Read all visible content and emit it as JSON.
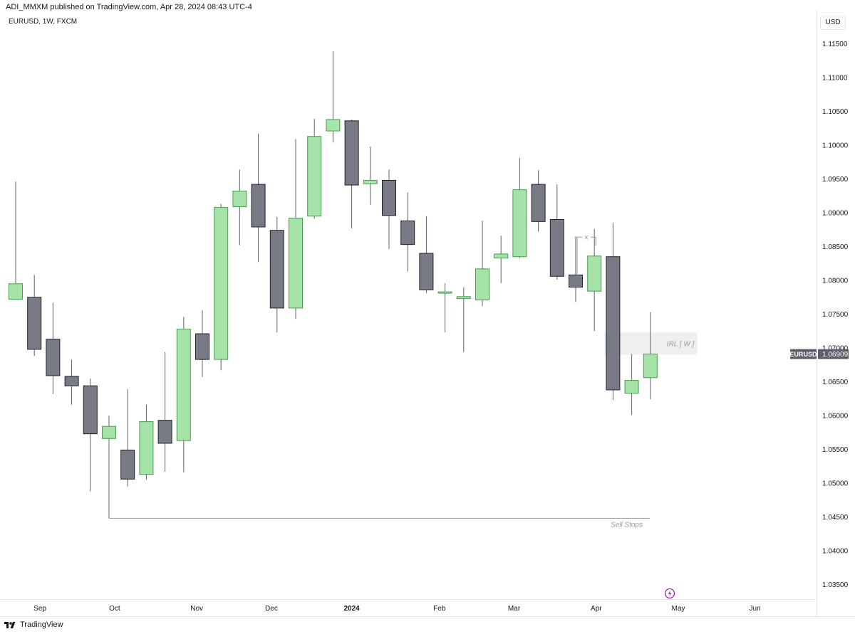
{
  "header": {
    "published_line": "ADI_MMXM published on TradingView.com, Apr 28, 2024 08:43 UTC-4",
    "symbol_line": "EURUSD, 1W, FXCM",
    "currency_button": "USD"
  },
  "footer": {
    "brand": "TradingView",
    "logo_icon": "tradingview-logo-icon"
  },
  "chart_data": {
    "type": "candlestick",
    "symbol": "EURUSD",
    "timeframe": "1W",
    "source": "FXCM",
    "colors": {
      "up_body": "#a5e3a8",
      "up_border": "#4a9d4f",
      "down_body": "#787b86",
      "down_border": "#1e222d",
      "wick": "#5d606b"
    },
    "ylim": [
      1.03,
      1.12
    ],
    "y_ticks": [
      "1.11500",
      "1.11000",
      "1.10500",
      "1.10000",
      "1.09500",
      "1.09000",
      "1.08500",
      "1.08000",
      "1.07500",
      "1.07000",
      "1.06500",
      "1.06000",
      "1.05500",
      "1.05000",
      "1.04500",
      "1.04000",
      "1.03500"
    ],
    "x_ticks": [
      {
        "label": "Sep",
        "week": 1.3
      },
      {
        "label": "Oct",
        "week": 5.3
      },
      {
        "label": "Nov",
        "week": 9.7
      },
      {
        "label": "Dec",
        "week": 13.7
      },
      {
        "label": "2024",
        "week": 18.0
      },
      {
        "label": "Feb",
        "week": 22.7
      },
      {
        "label": "Mar",
        "week": 26.7
      },
      {
        "label": "Apr",
        "week": 31.1
      },
      {
        "label": "May",
        "week": 35.5
      },
      {
        "label": "Jun",
        "week": 39.6
      }
    ],
    "candles": [
      {
        "week": 0,
        "open": 1.0772,
        "high": 1.0946,
        "low": 1.0772,
        "close": 1.0795
      },
      {
        "week": 1,
        "open": 1.0775,
        "high": 1.0808,
        "low": 1.0688,
        "close": 1.0698
      },
      {
        "week": 2,
        "open": 1.0713,
        "high": 1.0767,
        "low": 1.0632,
        "close": 1.0659
      },
      {
        "week": 3,
        "open": 1.0658,
        "high": 1.0683,
        "low": 1.0616,
        "close": 1.0644
      },
      {
        "week": 4,
        "open": 1.0644,
        "high": 1.0655,
        "low": 1.0488,
        "close": 1.0573
      },
      {
        "week": 5,
        "open": 1.0566,
        "high": 1.06,
        "low": 1.0448,
        "close": 1.0584
      },
      {
        "week": 6,
        "open": 1.0549,
        "high": 1.0639,
        "low": 1.0495,
        "close": 1.0506
      },
      {
        "week": 7,
        "open": 1.0513,
        "high": 1.0616,
        "low": 1.0505,
        "close": 1.0591
      },
      {
        "week": 8,
        "open": 1.0593,
        "high": 1.0694,
        "low": 1.0517,
        "close": 1.0559
      },
      {
        "week": 9,
        "open": 1.0563,
        "high": 1.0746,
        "low": 1.0516,
        "close": 1.0728
      },
      {
        "week": 10,
        "open": 1.0721,
        "high": 1.0756,
        "low": 1.0657,
        "close": 1.0683
      },
      {
        "week": 11,
        "open": 1.0683,
        "high": 1.0913,
        "low": 1.0667,
        "close": 1.0908
      },
      {
        "week": 12,
        "open": 1.0909,
        "high": 1.0964,
        "low": 1.0852,
        "close": 1.0932
      },
      {
        "week": 13,
        "open": 1.0942,
        "high": 1.1017,
        "low": 1.0827,
        "close": 1.0879
      },
      {
        "week": 14,
        "open": 1.0874,
        "high": 1.0894,
        "low": 1.0723,
        "close": 1.0759
      },
      {
        "week": 15,
        "open": 1.0759,
        "high": 1.1009,
        "low": 1.0743,
        "close": 1.0892
      },
      {
        "week": 16,
        "open": 1.0895,
        "high": 1.1039,
        "low": 1.0891,
        "close": 1.1013
      },
      {
        "week": 17,
        "open": 1.1021,
        "high": 1.1139,
        "low": 1.1004,
        "close": 1.1038
      },
      {
        "week": 18,
        "open": 1.1036,
        "high": 1.1038,
        "low": 1.0877,
        "close": 1.0941
      },
      {
        "week": 19,
        "open": 1.0943,
        "high": 1.0998,
        "low": 1.0912,
        "close": 1.0948
      },
      {
        "week": 20,
        "open": 1.0948,
        "high": 1.0964,
        "low": 1.0846,
        "close": 1.0896
      },
      {
        "week": 21,
        "open": 1.0888,
        "high": 1.093,
        "low": 1.0813,
        "close": 1.0853
      },
      {
        "week": 22,
        "open": 1.084,
        "high": 1.0895,
        "low": 1.0781,
        "close": 1.0786
      },
      {
        "week": 23,
        "open": 1.0781,
        "high": 1.0796,
        "low": 1.0723,
        "close": 1.0783
      },
      {
        "week": 24,
        "open": 1.0773,
        "high": 1.079,
        "low": 1.0694,
        "close": 1.0776
      },
      {
        "week": 25,
        "open": 1.0771,
        "high": 1.0888,
        "low": 1.0762,
        "close": 1.0817
      },
      {
        "week": 26,
        "open": 1.0833,
        "high": 1.0866,
        "low": 1.0796,
        "close": 1.0839
      },
      {
        "week": 27,
        "open": 1.0835,
        "high": 1.0981,
        "low": 1.0833,
        "close": 1.0934
      },
      {
        "week": 28,
        "open": 1.0942,
        "high": 1.0963,
        "low": 1.0872,
        "close": 1.0887
      },
      {
        "week": 29,
        "open": 1.089,
        "high": 1.0942,
        "low": 1.0801,
        "close": 1.0806
      },
      {
        "week": 30,
        "open": 1.0808,
        "high": 1.0865,
        "low": 1.0768,
        "close": 1.079
      },
      {
        "week": 31,
        "open": 1.0784,
        "high": 1.0876,
        "low": 1.0725,
        "close": 1.0836
      },
      {
        "week": 32,
        "open": 1.0835,
        "high": 1.0885,
        "low": 1.0623,
        "close": 1.0638
      },
      {
        "week": 33,
        "open": 1.0633,
        "high": 1.0691,
        "low": 1.0601,
        "close": 1.0652
      },
      {
        "week": 34,
        "open": 1.0656,
        "high": 1.0753,
        "low": 1.0624,
        "close": 1.0691
      }
    ],
    "annotations": {
      "irl_box": {
        "label": "IRL  [ W ]",
        "start_week": 32,
        "end_week": 37,
        "top": 1.0723,
        "bottom": 1.069
      },
      "sell_stops": {
        "label": "Sell Stops",
        "price": 1.0448,
        "start_week": 5,
        "end_week": 33
      },
      "swing_marker": {
        "label": "x",
        "price": 1.0864,
        "start_week": 30,
        "end_week": 31
      }
    },
    "last_price": {
      "label": "EURUSD",
      "value": "1.06909",
      "price": 1.06909
    },
    "grid": false,
    "legend": "none",
    "alert_icon": "lightning-icon"
  }
}
